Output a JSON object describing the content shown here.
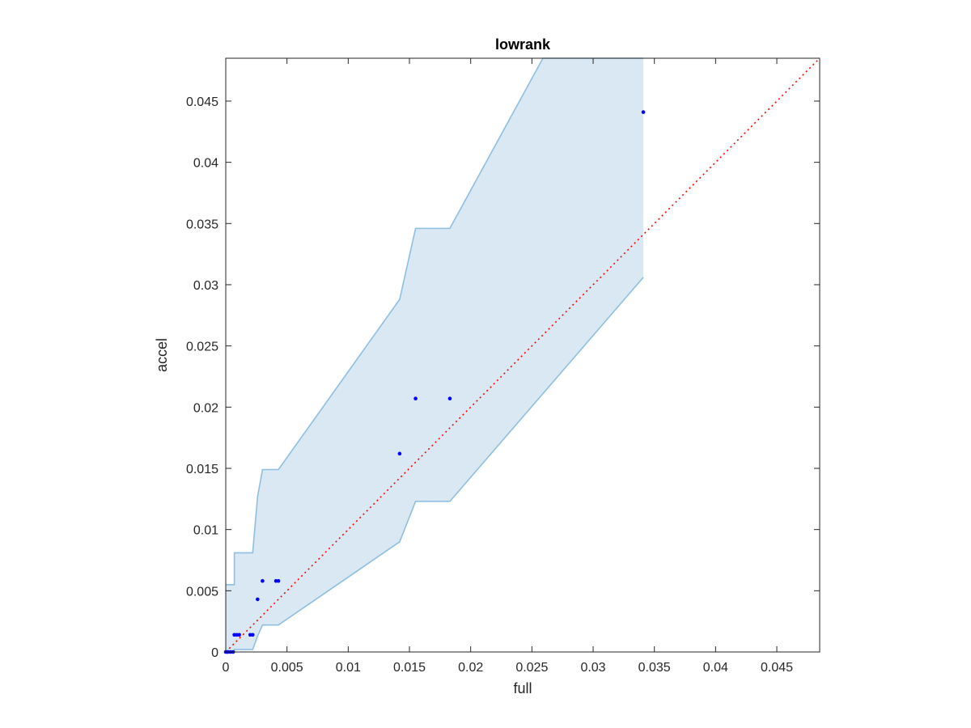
{
  "chart_data": {
    "type": "scatter",
    "title": "lowrank",
    "xlabel": "full",
    "ylabel": "accel",
    "xlim": [
      0,
      0.0485
    ],
    "ylim": [
      0,
      0.0485
    ],
    "xticks": [
      "0",
      "0.005",
      "0.01",
      "0.015",
      "0.02",
      "0.025",
      "0.03",
      "0.035",
      "0.04",
      "0.045"
    ],
    "yticks": [
      "0",
      "0.005",
      "0.01",
      "0.015",
      "0.02",
      "0.025",
      "0.03",
      "0.035",
      "0.04",
      "0.045"
    ],
    "tick_values": [
      0,
      0.005,
      0.01,
      0.015,
      0.02,
      0.025,
      0.03,
      0.035,
      0.04,
      0.045
    ],
    "grid": false,
    "points": [
      {
        "x": 0.0,
        "y": 0.0
      },
      {
        "x": 0.0001,
        "y": 0.0
      },
      {
        "x": 0.0002,
        "y": 0.0
      },
      {
        "x": 0.0004,
        "y": 0.0
      },
      {
        "x": 0.0006,
        "y": 0.0
      },
      {
        "x": 0.0007,
        "y": 0.0014
      },
      {
        "x": 0.0009,
        "y": 0.0014
      },
      {
        "x": 0.0011,
        "y": 0.0014
      },
      {
        "x": 0.002,
        "y": 0.0014
      },
      {
        "x": 0.0022,
        "y": 0.0014
      },
      {
        "x": 0.0026,
        "y": 0.0043
      },
      {
        "x": 0.003,
        "y": 0.0058
      },
      {
        "x": 0.0041,
        "y": 0.0058
      },
      {
        "x": 0.0043,
        "y": 0.0058
      },
      {
        "x": 0.0142,
        "y": 0.0162
      },
      {
        "x": 0.0155,
        "y": 0.0207
      },
      {
        "x": 0.0183,
        "y": 0.0207
      },
      {
        "x": 0.0341,
        "y": 0.0441
      }
    ],
    "band_upper": [
      {
        "x": 0.0,
        "y": 0.0055
      },
      {
        "x": 0.0007,
        "y": 0.0055
      },
      {
        "x": 0.0007,
        "y": 0.0081
      },
      {
        "x": 0.0022,
        "y": 0.0081
      },
      {
        "x": 0.0026,
        "y": 0.0127
      },
      {
        "x": 0.003,
        "y": 0.0149
      },
      {
        "x": 0.0043,
        "y": 0.0149
      },
      {
        "x": 0.0142,
        "y": 0.0288
      },
      {
        "x": 0.0155,
        "y": 0.0346
      },
      {
        "x": 0.0183,
        "y": 0.0346
      },
      {
        "x": 0.0259,
        "y": 0.0485
      },
      {
        "x": 0.0341,
        "y": 0.0485
      }
    ],
    "band_lower": [
      {
        "x": 0.0,
        "y": 0.0
      },
      {
        "x": 0.0007,
        "y": 0.0
      },
      {
        "x": 0.0007,
        "y": 0.0002
      },
      {
        "x": 0.0022,
        "y": 0.0002
      },
      {
        "x": 0.0026,
        "y": 0.0013
      },
      {
        "x": 0.003,
        "y": 0.0022
      },
      {
        "x": 0.0043,
        "y": 0.0022
      },
      {
        "x": 0.0142,
        "y": 0.009
      },
      {
        "x": 0.0155,
        "y": 0.0123
      },
      {
        "x": 0.0183,
        "y": 0.0123
      },
      {
        "x": 0.0341,
        "y": 0.0306
      }
    ],
    "reference_line": {
      "from": [
        0,
        0
      ],
      "to": [
        0.0485,
        0.0485
      ],
      "style": "dotted"
    },
    "colors": {
      "points": "#0000ff",
      "band_fill": "#d9e8f3",
      "band_edge": "#8fbfe0",
      "reference_line": "#ff0000",
      "axes": "#262626"
    }
  }
}
